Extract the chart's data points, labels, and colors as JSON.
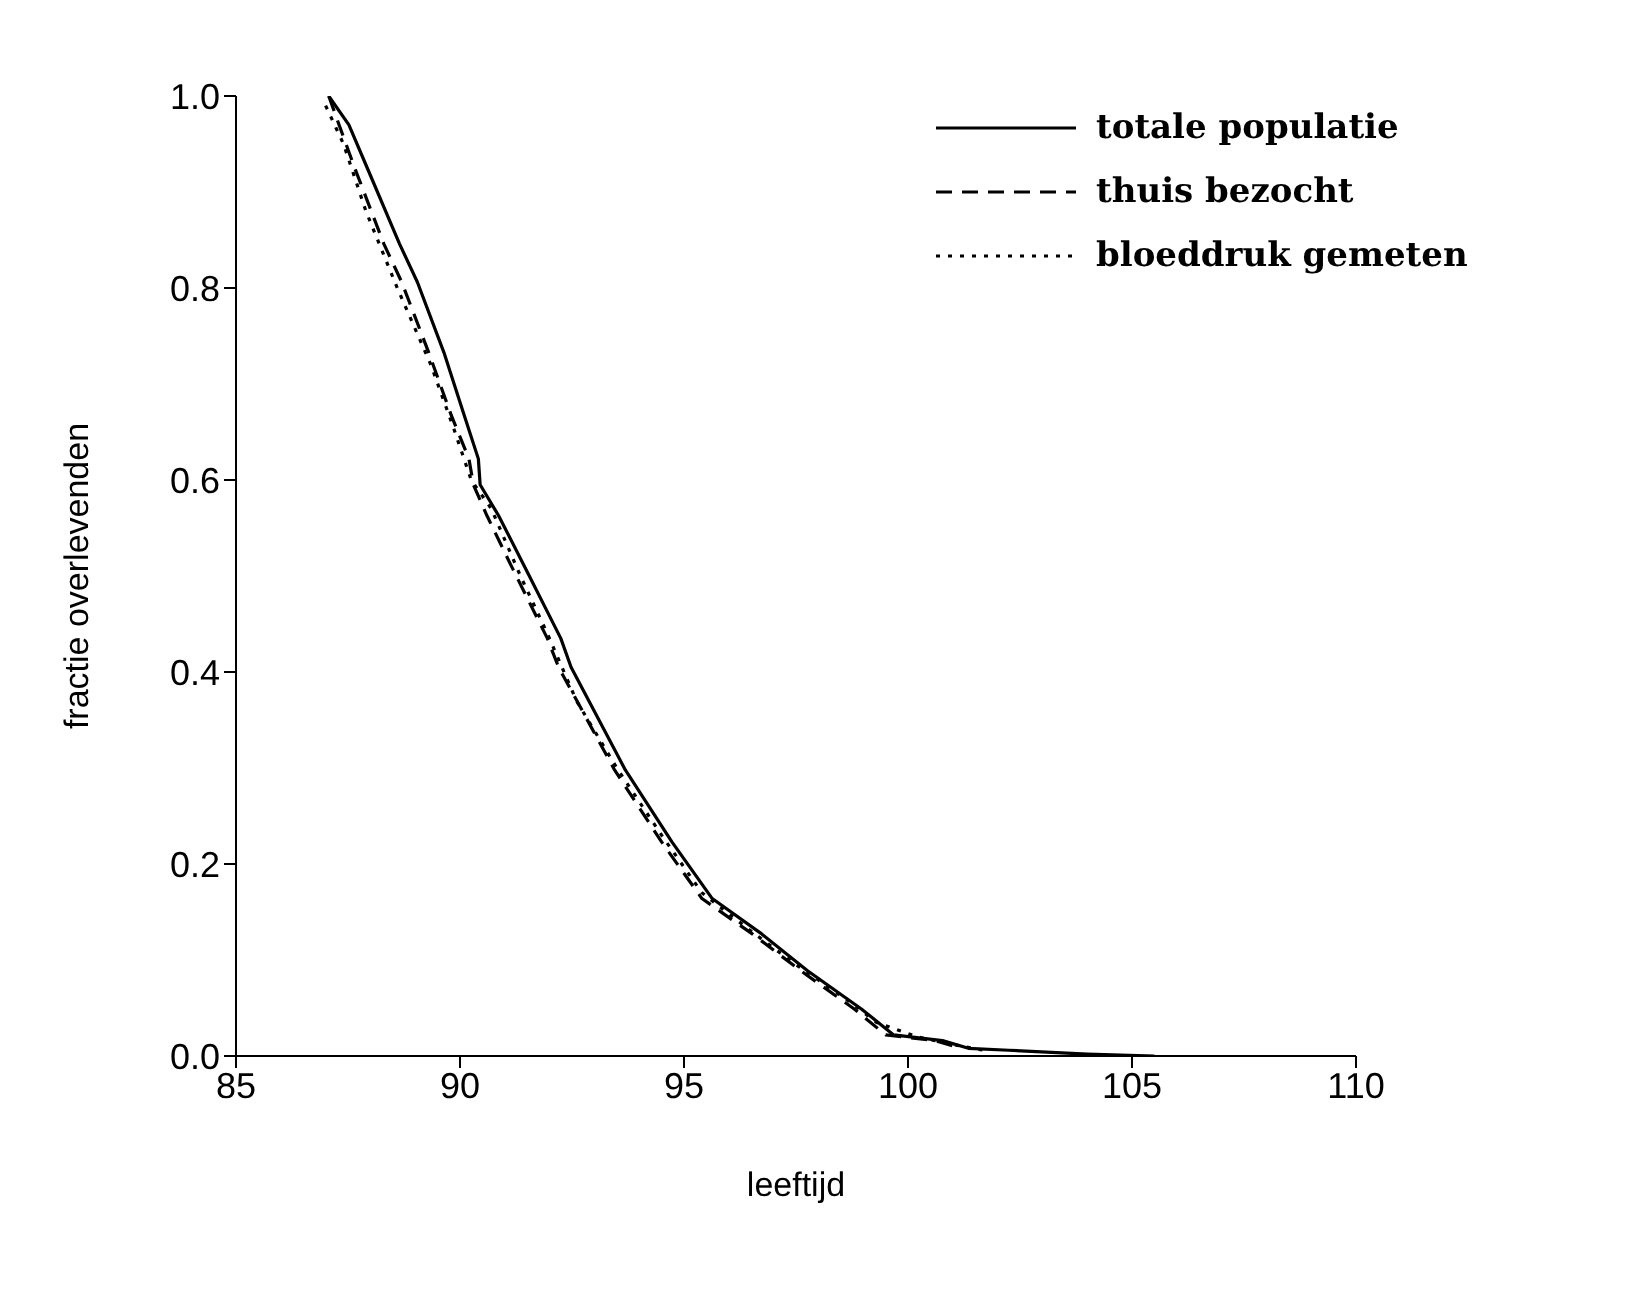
{
  "chart_data": {
    "type": "line",
    "xlabel": "leeftijd",
    "ylabel": "fractie overlevenden",
    "xlim": [
      85,
      110
    ],
    "xticks": [
      85,
      90,
      95,
      100,
      105,
      110
    ],
    "ylim": [
      0,
      1
    ],
    "yticks": [
      {
        "value": 0,
        "label": "0.0"
      },
      0.2,
      0.4,
      0.6,
      0.8,
      {
        "value": 1,
        "label": "1.0"
      }
    ],
    "legend": "top right",
    "grid": false,
    "marker": "none",
    "series": [
      {
        "name": "totale populatie",
        "color": "#000000",
        "line_style": "solid",
        "x": [
          87.07,
          87.52,
          87.93,
          88.65,
          89.05,
          89.64,
          90.09,
          90.41,
          90.45,
          90.86,
          91.44,
          92.25,
          92.48,
          93.69,
          94.73,
          95.63,
          96.71,
          97.75,
          98.96,
          99.68,
          100.77,
          101.35,
          102.25,
          104,
          105.5
        ],
        "values": [
          1.0,
          0.97,
          0.925,
          0.846,
          0.806,
          0.733,
          0.668,
          0.622,
          0.595,
          0.563,
          0.51,
          0.435,
          0.405,
          0.298,
          0.223,
          0.164,
          0.128,
          0.089,
          0.049,
          0.022,
          0.016,
          0.008,
          0.006,
          0.002,
          0
        ]
      },
      {
        "name": "thuis bezocht",
        "color": "#000000",
        "line_style": "dashed",
        "x": [
          87.07,
          87.3,
          87.65,
          88.3,
          88.7,
          89.3,
          89.8,
          90.2,
          90.3,
          90.6,
          91.15,
          91.95,
          92.2,
          93.45,
          94.5,
          95.4,
          96.5,
          97.6,
          98.8,
          99.5,
          100.6,
          101.2
        ],
        "values": [
          1.0,
          0.97,
          0.925,
          0.846,
          0.806,
          0.733,
          0.668,
          0.622,
          0.595,
          0.563,
          0.51,
          0.435,
          0.405,
          0.298,
          0.223,
          0.164,
          0.128,
          0.089,
          0.049,
          0.022,
          0.016,
          0.008
        ]
      },
      {
        "name": "bloeddruk gemeten",
        "color": "#000000",
        "line_style": "dotted",
        "x": [
          87.0,
          87.4,
          87.9,
          88.6,
          89.35,
          89.85,
          90.25,
          90.7,
          91.35,
          91.95,
          92.6,
          93.5,
          94.5,
          95.4,
          96.5,
          97.5,
          98.6,
          99.3,
          100.2,
          101.0,
          101.8
        ],
        "values": [
          0.99,
          0.95,
          0.88,
          0.8,
          0.72,
          0.655,
          0.6,
          0.57,
          0.5,
          0.44,
          0.37,
          0.3,
          0.23,
          0.17,
          0.13,
          0.095,
          0.06,
          0.035,
          0.02,
          0.012,
          0.005
        ]
      }
    ]
  }
}
